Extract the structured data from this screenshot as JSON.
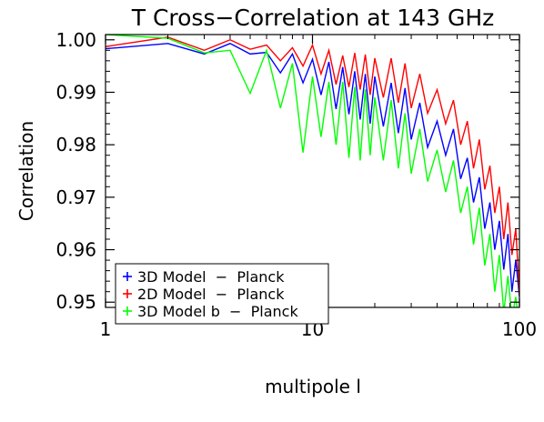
{
  "chart_data": {
    "type": "line",
    "title": "T Cross−Correlation at 143 GHz",
    "xlabel": "multipole l",
    "ylabel": "Correlation",
    "xscale": "log",
    "xlim": [
      1,
      100
    ],
    "ylim": [
      0.949,
      1.001
    ],
    "x_tick_labels": [
      "1",
      "10",
      "100"
    ],
    "x_tick_values": [
      1,
      10,
      100
    ],
    "y_tick_labels": [
      "0.95",
      "0.96",
      "0.97",
      "0.98",
      "0.99",
      "1.00"
    ],
    "y_tick_values": [
      0.95,
      0.96,
      0.97,
      0.98,
      0.99,
      1.0
    ],
    "grid": false,
    "legend_position": "bottom-left",
    "series": [
      {
        "name": "3D Model  −  Planck",
        "color": "#0000ff",
        "points": [
          [
            1,
            0.9983
          ],
          [
            2,
            0.9993
          ],
          [
            3,
            0.9973
          ],
          [
            4,
            0.9993
          ],
          [
            5,
            0.9973
          ],
          [
            6,
            0.9976
          ],
          [
            7,
            0.9937
          ],
          [
            8,
            0.9973
          ],
          [
            9,
            0.9918
          ],
          [
            10,
            0.9963
          ],
          [
            11,
            0.9895
          ],
          [
            12,
            0.9958
          ],
          [
            13,
            0.9868
          ],
          [
            14,
            0.9948
          ],
          [
            15,
            0.9858
          ],
          [
            16,
            0.994
          ],
          [
            17,
            0.9848
          ],
          [
            18,
            0.9935
          ],
          [
            19,
            0.984
          ],
          [
            20,
            0.993
          ],
          [
            22,
            0.9835
          ],
          [
            24,
            0.9918
          ],
          [
            26,
            0.9822
          ],
          [
            28,
            0.9908
          ],
          [
            30,
            0.981
          ],
          [
            33,
            0.988
          ],
          [
            36,
            0.9795
          ],
          [
            40,
            0.9845
          ],
          [
            44,
            0.978
          ],
          [
            48,
            0.983
          ],
          [
            52,
            0.9735
          ],
          [
            56,
            0.9775
          ],
          [
            60,
            0.969
          ],
          [
            64,
            0.9738
          ],
          [
            68,
            0.964
          ],
          [
            72,
            0.969
          ],
          [
            76,
            0.96
          ],
          [
            80,
            0.9655
          ],
          [
            84,
            0.9562
          ],
          [
            88,
            0.963
          ],
          [
            92,
            0.952
          ],
          [
            96,
            0.958
          ],
          [
            100,
            0.951
          ]
        ]
      },
      {
        "name": "2D Model  −  Planck",
        "color": "#ff0000",
        "points": [
          [
            1,
            0.9987
          ],
          [
            2,
            1.0005
          ],
          [
            3,
            0.998
          ],
          [
            4,
            1.0
          ],
          [
            5,
            0.9982
          ],
          [
            6,
            0.999
          ],
          [
            7,
            0.996
          ],
          [
            8,
            0.9985
          ],
          [
            9,
            0.995
          ],
          [
            10,
            0.999
          ],
          [
            11,
            0.9935
          ],
          [
            12,
            0.998
          ],
          [
            13,
            0.9915
          ],
          [
            14,
            0.997
          ],
          [
            15,
            0.991
          ],
          [
            16,
            0.9975
          ],
          [
            17,
            0.9905
          ],
          [
            18,
            0.9972
          ],
          [
            19,
            0.9895
          ],
          [
            20,
            0.9965
          ],
          [
            22,
            0.989
          ],
          [
            24,
            0.9965
          ],
          [
            26,
            0.988
          ],
          [
            28,
            0.9955
          ],
          [
            30,
            0.987
          ],
          [
            33,
            0.9935
          ],
          [
            36,
            0.986
          ],
          [
            40,
            0.9905
          ],
          [
            44,
            0.984
          ],
          [
            48,
            0.9885
          ],
          [
            52,
            0.98
          ],
          [
            56,
            0.9845
          ],
          [
            60,
            0.9755
          ],
          [
            64,
            0.981
          ],
          [
            68,
            0.9715
          ],
          [
            72,
            0.976
          ],
          [
            76,
            0.967
          ],
          [
            80,
            0.972
          ],
          [
            84,
            0.962
          ],
          [
            88,
            0.969
          ],
          [
            92,
            0.959
          ],
          [
            96,
            0.964
          ],
          [
            100,
            0.9515
          ]
        ]
      },
      {
        "name": "3D Model b  −  Planck",
        "color": "#00ff00",
        "points": [
          [
            1,
            1.001
          ],
          [
            2,
            1.0003
          ],
          [
            3,
            0.9975
          ],
          [
            4,
            0.998
          ],
          [
            5,
            0.9898
          ],
          [
            6,
            0.998
          ],
          [
            7,
            0.987
          ],
          [
            8,
            0.9955
          ],
          [
            9,
            0.9785
          ],
          [
            10,
            0.993
          ],
          [
            11,
            0.9815
          ],
          [
            12,
            0.992
          ],
          [
            13,
            0.98
          ],
          [
            14,
            0.992
          ],
          [
            15,
            0.9775
          ],
          [
            16,
            0.991
          ],
          [
            17,
            0.977
          ],
          [
            18,
            0.9905
          ],
          [
            19,
            0.978
          ],
          [
            20,
            0.989
          ],
          [
            22,
            0.977
          ],
          [
            24,
            0.9885
          ],
          [
            26,
            0.9755
          ],
          [
            28,
            0.986
          ],
          [
            30,
            0.9745
          ],
          [
            33,
            0.983
          ],
          [
            36,
            0.973
          ],
          [
            40,
            0.979
          ],
          [
            44,
            0.971
          ],
          [
            48,
            0.977
          ],
          [
            52,
            0.967
          ],
          [
            56,
            0.972
          ],
          [
            60,
            0.961
          ],
          [
            64,
            0.968
          ],
          [
            68,
            0.957
          ],
          [
            72,
            0.963
          ],
          [
            76,
            0.952
          ],
          [
            80,
            0.959
          ],
          [
            84,
            0.948
          ],
          [
            88,
            0.955
          ],
          [
            92,
            0.947
          ],
          [
            96,
            0.951
          ],
          [
            100,
            0.945
          ]
        ]
      }
    ]
  }
}
